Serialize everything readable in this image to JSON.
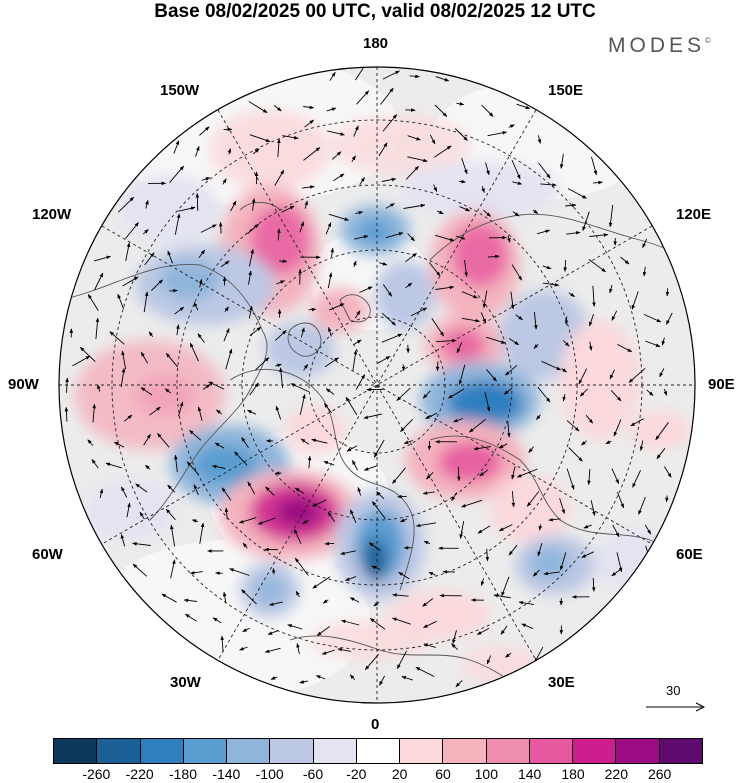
{
  "header": {
    "title": "Base 08/02/2025 00 UTC, valid 08/02/2025 12 UTC",
    "brand": "MODES",
    "brand_mark": "©"
  },
  "map": {
    "projection": "north-polar-stereographic",
    "meridian_labels": {
      "top": "180",
      "top_left": "150W",
      "top_right": "150E",
      "upper_left": "120W",
      "upper_right": "120E",
      "left": "90W",
      "right": "90E",
      "lower_left": "60W",
      "lower_right": "60E",
      "bottom_left": "30W",
      "bottom_right": "30E",
      "bottom": "0"
    },
    "reference_vector": {
      "value": "30"
    }
  },
  "colorbar": {
    "colors": [
      "#0d3a5c",
      "#1a5f95",
      "#2f7fbf",
      "#5a9dd1",
      "#8fb5db",
      "#bcc8e4",
      "#e3e3f2",
      "#ffffff",
      "#fbd9dc",
      "#f4b3bd",
      "#ef8db1",
      "#e6589f",
      "#cc1f8d",
      "#9b0c82",
      "#5e0a6e"
    ],
    "tick_labels": [
      "-260",
      "-220",
      "-180",
      "-140",
      "-100",
      "-60",
      "-20",
      "20",
      "60",
      "100",
      "140",
      "180",
      "220",
      "260"
    ]
  }
}
